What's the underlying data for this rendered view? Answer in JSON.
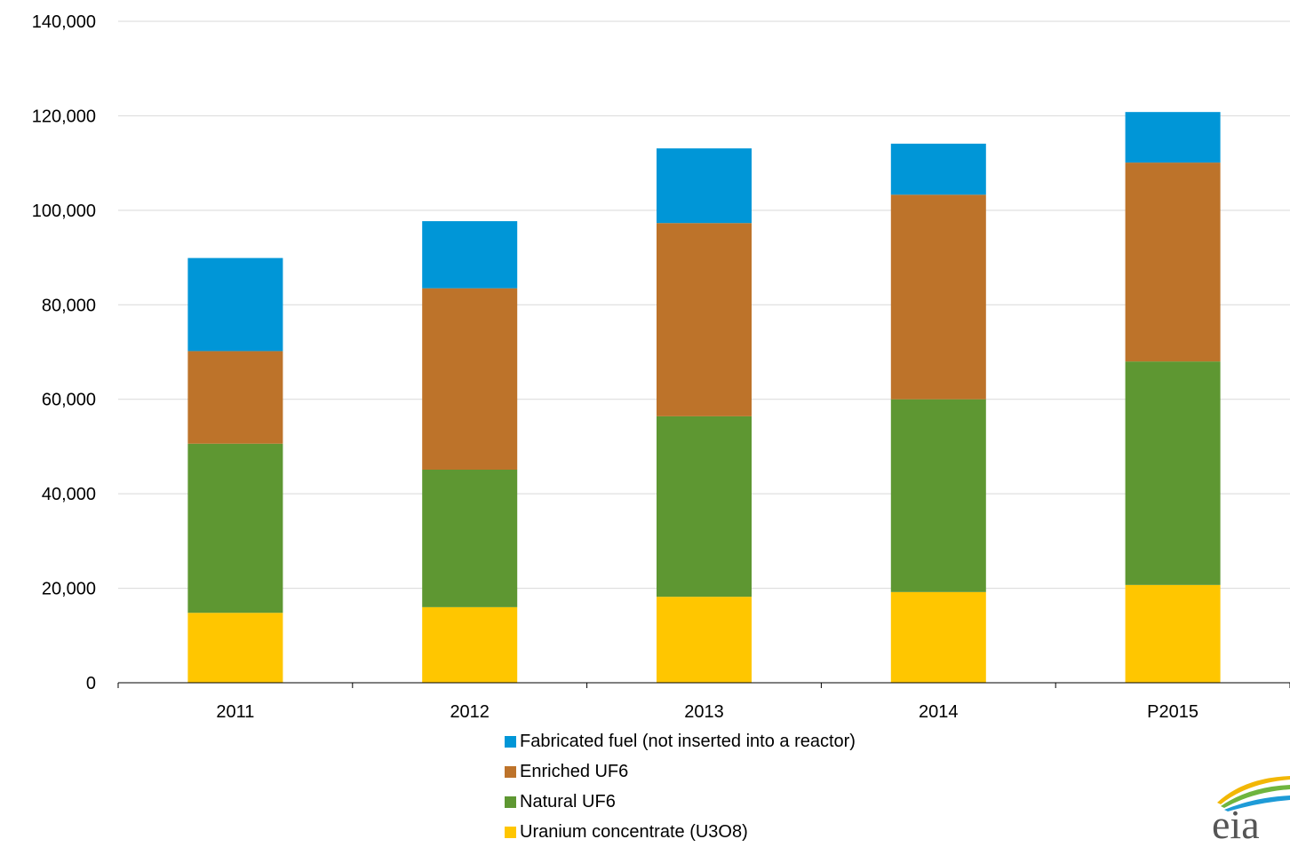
{
  "chart_data": {
    "type": "bar",
    "stacked": true,
    "categories": [
      "2011",
      "2012",
      "2013",
      "2014",
      "P2015"
    ],
    "series": [
      {
        "name": "Uranium concentrate (U3O8)",
        "color": "#FFC600",
        "values": [
          14800,
          16000,
          18200,
          19200,
          20700
        ]
      },
      {
        "name": "Natural UF6",
        "color": "#5E9732",
        "values": [
          35800,
          29100,
          38200,
          40800,
          47300
        ]
      },
      {
        "name": "Enriched UF6",
        "color": "#BD732A",
        "values": [
          19600,
          38400,
          40900,
          43300,
          42100
        ]
      },
      {
        "name": "Fabricated fuel (not inserted into a reactor)",
        "color": "#0096D7",
        "values": [
          19700,
          14200,
          15800,
          10800,
          10700
        ]
      }
    ],
    "ylim": [
      0,
      140000
    ],
    "yticks": [
      "0",
      "20,000",
      "40,000",
      "60,000",
      "80,000",
      "100,000",
      "120,000",
      "140,000"
    ],
    "grid": true,
    "legend_position": "bottom",
    "legend_order": [
      "Fabricated fuel (not inserted into a reactor)",
      "Enriched UF6",
      "Natural UF6",
      "Uranium concentrate (U3O8)"
    ]
  },
  "logo": {
    "text": "eia",
    "name": "eia-logo"
  }
}
